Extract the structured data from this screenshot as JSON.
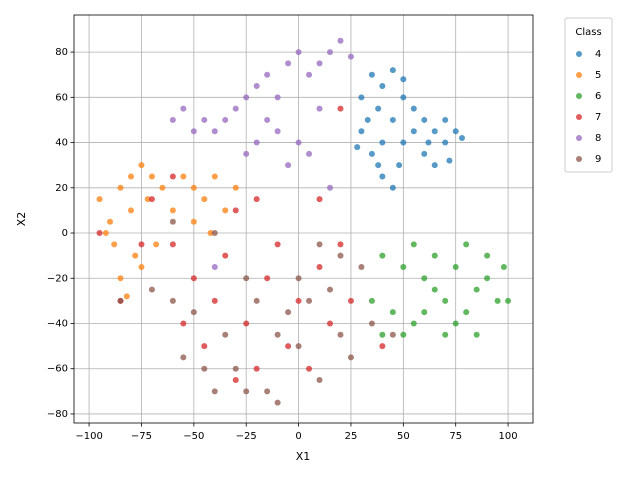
{
  "chart_data": {
    "type": "scatter",
    "xlabel": "X1",
    "ylabel": "X2",
    "legend_title": "Class",
    "legend_position": "outside-upper-right",
    "grid": true,
    "xlim": [
      -107.2,
      111.9
    ],
    "ylim": [
      -84,
      96.4
    ],
    "xticks": [
      {
        "value": -100,
        "label": "−100"
      },
      {
        "value": -75,
        "label": "−75"
      },
      {
        "value": -50,
        "label": "−50"
      },
      {
        "value": -25,
        "label": "−25"
      },
      0,
      25,
      50,
      75,
      100
    ],
    "yticks": [
      {
        "value": -80,
        "label": "−80"
      },
      {
        "value": -60,
        "label": "−60"
      },
      {
        "value": -40,
        "label": "−40"
      },
      {
        "value": -20,
        "label": "−20"
      },
      0,
      20,
      40,
      60,
      80
    ],
    "series": [
      {
        "name": "4",
        "color": "#1f77b4",
        "x": [
          30,
          35,
          40,
          45,
          50,
          38,
          45,
          55,
          60,
          65,
          70,
          75,
          78,
          60,
          65,
          50,
          40,
          30,
          35,
          40,
          45,
          38,
          55,
          70,
          50,
          28,
          62,
          48,
          33,
          72
        ],
        "values": [
          60,
          70,
          65,
          72,
          68,
          55,
          50,
          55,
          50,
          45,
          40,
          45,
          42,
          35,
          30,
          40,
          40,
          45,
          35,
          25,
          20,
          30,
          45,
          50,
          60,
          38,
          40,
          30,
          50,
          32
        ]
      },
      {
        "name": "5",
        "color": "#ff7f0e",
        "x": [
          -95,
          -90,
          -85,
          -80,
          -75,
          -70,
          -72,
          -80,
          -88,
          -85,
          -78,
          -65,
          -50,
          -45,
          -40,
          -35,
          -50,
          -55,
          -92,
          -75,
          -82,
          -60,
          -42,
          -30,
          -68
        ],
        "values": [
          15,
          5,
          20,
          25,
          30,
          25,
          15,
          10,
          -5,
          -20,
          -10,
          20,
          20,
          15,
          25,
          10,
          5,
          25,
          0,
          -15,
          -28,
          10,
          0,
          20,
          -5
        ]
      },
      {
        "name": "6",
        "color": "#2ca02c",
        "x": [
          40,
          50,
          55,
          60,
          65,
          70,
          75,
          80,
          85,
          90,
          95,
          100,
          90,
          85,
          70,
          60,
          55,
          45,
          35,
          40,
          65,
          75,
          98,
          80,
          50
        ],
        "values": [
          -10,
          -15,
          -5,
          -20,
          -25,
          -30,
          -40,
          -35,
          -25,
          -20,
          -30,
          -30,
          -10,
          -45,
          -45,
          -35,
          -40,
          -35,
          -30,
          -45,
          -10,
          -15,
          -15,
          -5,
          -45
        ]
      },
      {
        "name": "7",
        "color": "#d62728",
        "x": [
          -95,
          -85,
          -75,
          -70,
          -60,
          -55,
          -50,
          -45,
          -40,
          -35,
          -30,
          -25,
          -20,
          -15,
          -10,
          -5,
          0,
          5,
          10,
          15,
          20,
          25,
          10,
          -60,
          -30,
          40,
          -20,
          20
        ],
        "values": [
          0,
          -30,
          -5,
          15,
          -5,
          -40,
          -20,
          -50,
          -30,
          -10,
          10,
          -40,
          -60,
          -20,
          -5,
          -50,
          -30,
          -60,
          -15,
          -40,
          -5,
          -30,
          15,
          25,
          -65,
          -50,
          15,
          55
        ]
      },
      {
        "name": "8",
        "color": "#9467bd",
        "x": [
          -60,
          -55,
          -50,
          -45,
          -40,
          -35,
          -30,
          -25,
          -20,
          -15,
          -10,
          -5,
          0,
          5,
          10,
          15,
          20,
          25,
          -10,
          0,
          5,
          -5,
          -20,
          -25,
          15,
          -40,
          10,
          -15
        ],
        "values": [
          50,
          55,
          45,
          50,
          45,
          50,
          55,
          60,
          65,
          50,
          60,
          75,
          80,
          70,
          75,
          80,
          85,
          78,
          45,
          40,
          35,
          30,
          40,
          35,
          20,
          -15,
          55,
          70
        ]
      },
      {
        "name": "9",
        "color": "#8c564b",
        "x": [
          -85,
          -70,
          -60,
          -55,
          -50,
          -45,
          -40,
          -35,
          -30,
          -25,
          -20,
          -15,
          -10,
          -5,
          0,
          0,
          5,
          10,
          15,
          20,
          25,
          30,
          35,
          45,
          -40,
          -25,
          -60,
          20,
          10,
          -10
        ],
        "values": [
          -30,
          -25,
          -30,
          -55,
          -35,
          -60,
          -70,
          -45,
          -60,
          -70,
          -30,
          -70,
          -45,
          -35,
          -20,
          -50,
          -30,
          -65,
          -25,
          -45,
          -55,
          -15,
          -40,
          -45,
          0,
          -20,
          5,
          -10,
          -5,
          -75
        ]
      }
    ]
  }
}
